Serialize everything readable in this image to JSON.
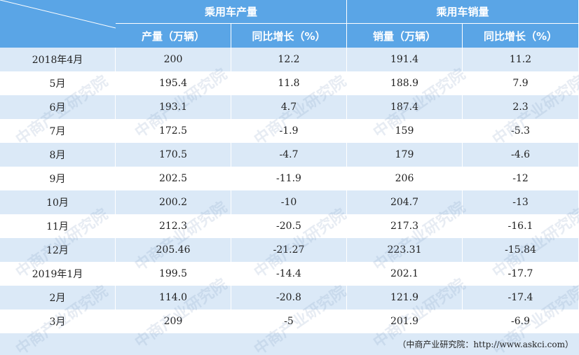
{
  "table": {
    "group_headers": [
      "乘用车产量",
      "乘用车销量"
    ],
    "headers": [
      "产量（万辆）",
      "同比增长（%）",
      "销量（万辆）",
      "同比增长（%）"
    ],
    "rows": [
      [
        "2018年4月",
        "200",
        "12.2",
        "191.4",
        "11.2"
      ],
      [
        "5月",
        "195.4",
        "11.8",
        "188.9",
        "7.9"
      ],
      [
        "6月",
        "193.1",
        "4.7",
        "187.4",
        "2.3"
      ],
      [
        "7月",
        "172.5",
        "-1.9",
        "159",
        "-5.3"
      ],
      [
        "8月",
        "170.5",
        "-4.7",
        "179",
        "-4.6"
      ],
      [
        "9月",
        "202.5",
        "-11.9",
        "206",
        "-12"
      ],
      [
        "10月",
        "200.2",
        "-10",
        "204.7",
        "-13"
      ],
      [
        "11月",
        "212.3",
        "-20.5",
        "217.3",
        "-16.1"
      ],
      [
        "12月",
        "205.46",
        "-21.27",
        "223.31",
        "-15.84"
      ],
      [
        "2019年1月",
        "199.5",
        "-14.4",
        "202.1",
        "-17.7"
      ],
      [
        "2月",
        "114.0",
        "-20.8",
        "121.9",
        "-17.4"
      ],
      [
        "3月",
        "209",
        "-5",
        "201.9",
        "-6.9"
      ]
    ]
  },
  "source": "（中商产业研究院：http://www.askci.com）",
  "watermark": "中商产业研究院"
}
